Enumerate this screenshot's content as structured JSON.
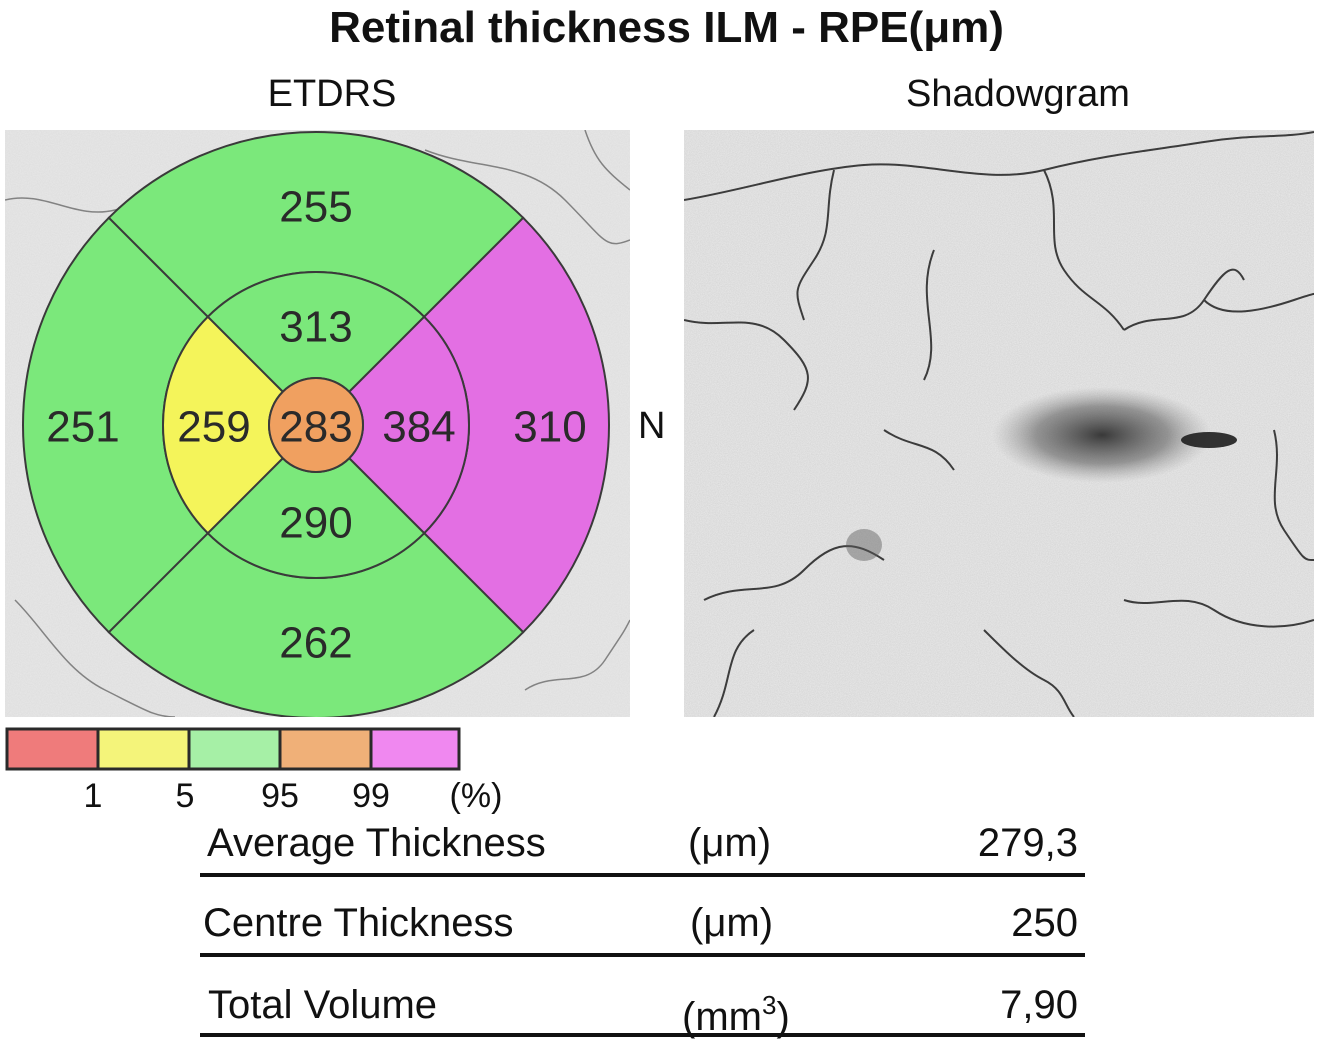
{
  "title": "Retinal thickness ILM - RPE(μm)",
  "etdrs": {
    "label": "ETDRS",
    "orientation_label": "N",
    "sectors": {
      "center": {
        "value": "283",
        "color": "#f0a060"
      },
      "inner_superior": {
        "value": "313",
        "color": "#7be87b"
      },
      "inner_temporal": {
        "value": "259",
        "color": "#f4f45a"
      },
      "inner_inferior": {
        "value": "290",
        "color": "#7be87b"
      },
      "inner_nasal": {
        "value": "384",
        "color": "#e36fe3"
      },
      "outer_superior": {
        "value": "255",
        "color": "#7be87b"
      },
      "outer_temporal": {
        "value": "251",
        "color": "#7be87b"
      },
      "outer_inferior": {
        "value": "262",
        "color": "#7be87b"
      },
      "outer_nasal": {
        "value": "310",
        "color": "#e36fe3"
      }
    }
  },
  "shadowgram": {
    "label": "Shadowgram"
  },
  "legend": {
    "colors": [
      "#ef7b7b",
      "#f4f47a",
      "#a6f0a6",
      "#f0b078",
      "#f088f0"
    ],
    "ticks": [
      "1",
      "5",
      "95",
      "99"
    ],
    "unit": "(%)"
  },
  "stats": [
    {
      "label": "Average Thickness",
      "unit": "(μm)",
      "value": "279,3"
    },
    {
      "label": "Centre Thickness",
      "unit": "(μm)",
      "value": "250"
    },
    {
      "label": "Total Volume",
      "unit_main": "(mm",
      "unit_sup": "3",
      "unit_close": ")",
      "value": "7,90"
    }
  ]
}
